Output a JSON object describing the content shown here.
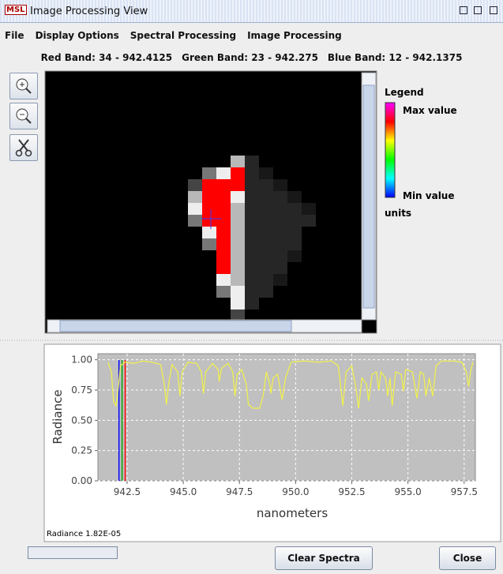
{
  "window": {
    "icon": "MSL",
    "title": "Image Processing View"
  },
  "menu": [
    "File",
    "Display Options",
    "Spectral Processing",
    "Image Processing"
  ],
  "band_info": [
    "Red Band:  34 - 942.4125",
    "Green Band:  23 - 942.275",
    "Blue Band:  12 - 942.1375"
  ],
  "legend": {
    "title": "Legend",
    "max": "Max value",
    "min": "Min value",
    "units": "units"
  },
  "chart_data": {
    "type": "line",
    "xlabel": "nanometers",
    "ylabel": "Radiance",
    "color": "#f2f24a",
    "grid": true,
    "xlim": [
      941.2,
      958.0
    ],
    "ylim": [
      0,
      1.05
    ],
    "xticks": [
      942.5,
      {
        "value": 945,
        "label": "945.0"
      },
      947.5,
      {
        "value": 950,
        "label": "950.0"
      },
      952.5,
      {
        "value": 955,
        "label": "955.0"
      },
      957.5
    ],
    "yticks": [
      {
        "value": 0,
        "label": "0.00"
      },
      0.25,
      {
        "value": 0.5,
        "label": "0.50"
      },
      0.75,
      {
        "value": 1,
        "label": "1.00"
      }
    ],
    "markers": [
      {
        "x": 942.1375,
        "color": "#0000ff"
      },
      {
        "x": 942.275,
        "color": "#00a000"
      },
      {
        "x": 942.4125,
        "color": "#ff0000"
      }
    ],
    "x": [
      941.65,
      941.8,
      941.9,
      942.0,
      942.1,
      942.2,
      942.4,
      942.8,
      943.2,
      943.6,
      944.0,
      944.15,
      944.25,
      944.35,
      944.5,
      944.75,
      944.85,
      944.95,
      945.2,
      945.6,
      945.8,
      945.9,
      946.0,
      946.3,
      946.55,
      946.6,
      946.7,
      947.0,
      947.2,
      947.3,
      947.4,
      947.6,
      947.8,
      947.9,
      948.1,
      948.4,
      948.55,
      948.7,
      948.85,
      948.9,
      949.0,
      949.2,
      949.4,
      949.55,
      949.8,
      950.4,
      951.0,
      951.6,
      951.9,
      952.1,
      952.25,
      952.5,
      952.7,
      952.8,
      952.95,
      953.15,
      953.25,
      953.4,
      953.6,
      953.7,
      953.8,
      954.0,
      954.1,
      954.2,
      954.3,
      954.45,
      954.7,
      954.8,
      954.9,
      955.2,
      955.4,
      955.55,
      955.7,
      955.8,
      955.95,
      956.1,
      956.25,
      956.5,
      957.0,
      957.4,
      957.6,
      957.7,
      957.8,
      957.9
    ],
    "values": [
      0.98,
      0.9,
      0.65,
      0.62,
      0.75,
      0.95,
      0.98,
      0.97,
      0.99,
      0.98,
      0.96,
      0.8,
      0.63,
      0.8,
      0.96,
      0.9,
      0.7,
      0.9,
      0.98,
      0.97,
      0.9,
      0.72,
      0.9,
      0.97,
      0.92,
      0.82,
      0.93,
      0.97,
      0.9,
      0.7,
      0.88,
      0.92,
      0.8,
      0.63,
      0.6,
      0.6,
      0.7,
      0.9,
      0.8,
      0.72,
      0.85,
      0.88,
      0.67,
      0.85,
      0.98,
      0.99,
      0.98,
      0.99,
      0.95,
      0.62,
      0.9,
      0.95,
      0.75,
      0.6,
      0.85,
      0.8,
      0.66,
      0.88,
      0.9,
      0.75,
      0.9,
      0.85,
      0.7,
      0.85,
      0.62,
      0.9,
      0.88,
      0.74,
      0.92,
      0.9,
      0.68,
      0.9,
      0.88,
      0.7,
      0.85,
      0.7,
      0.95,
      0.99,
      0.99,
      0.98,
      0.9,
      0.78,
      0.92,
      0.98
    ]
  },
  "status": "Radiance 1.82E-05",
  "buttons": [
    "Clear Spectra",
    "Close"
  ]
}
